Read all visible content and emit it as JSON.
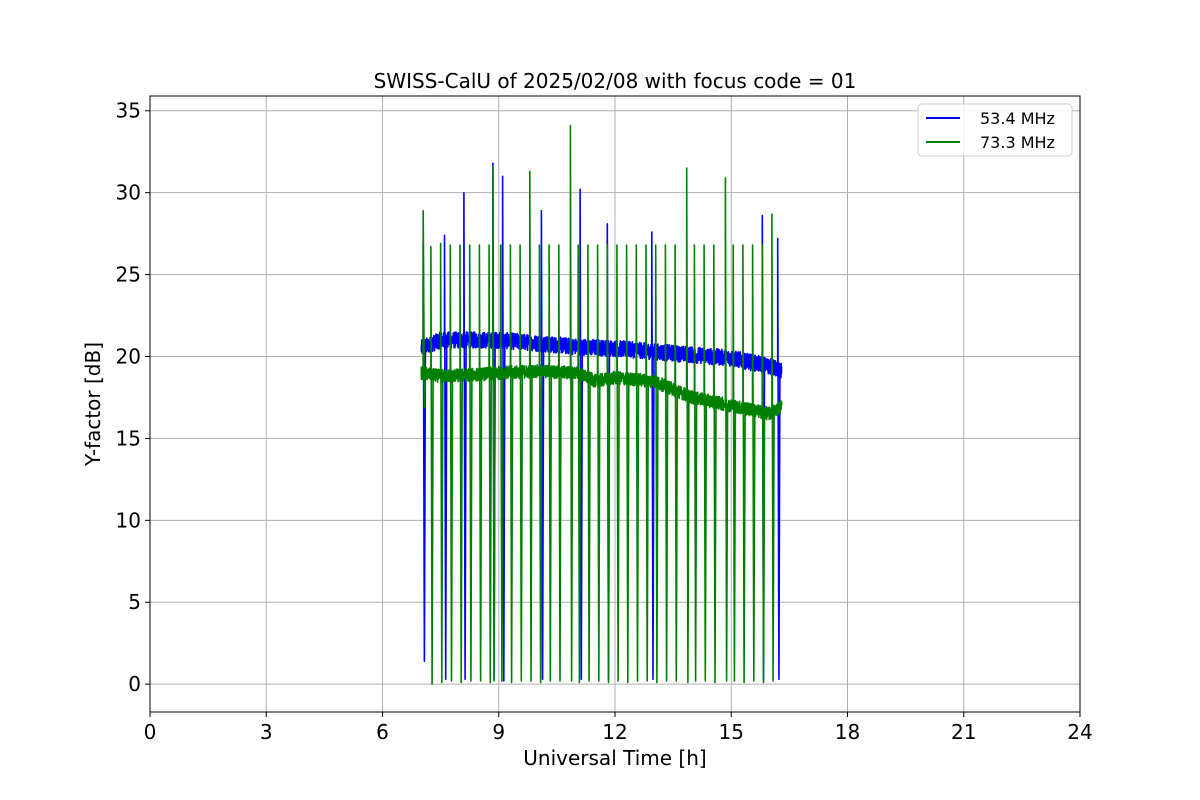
{
  "chart_data": {
    "type": "line",
    "title": "SWISS-CalU of 2025/02/08 with focus code = 01",
    "xlabel": "Universal Time [h]",
    "ylabel": "Y-factor [dB]",
    "xlim": [
      0,
      24
    ],
    "ylim": [
      -1.7,
      35.9
    ],
    "x_ticks": [
      0,
      3,
      6,
      9,
      12,
      15,
      18,
      21,
      24
    ],
    "y_ticks": [
      0,
      5,
      10,
      15,
      20,
      25,
      30,
      35
    ],
    "grid": true,
    "legend_position": "top-right",
    "series": [
      {
        "name": "53.4 MHz",
        "color": "#0000ff",
        "baseline": [
          [
            7.0,
            20.5
          ],
          [
            7.5,
            21.0
          ],
          [
            8.5,
            21.0
          ],
          [
            9.0,
            21.0
          ],
          [
            10.0,
            20.8
          ],
          [
            11.0,
            20.6
          ],
          [
            12.0,
            20.5
          ],
          [
            13.0,
            20.3
          ],
          [
            14.0,
            20.1
          ],
          [
            15.0,
            19.9
          ],
          [
            16.0,
            19.4
          ],
          [
            16.3,
            19.1
          ]
        ],
        "spikes": [
          {
            "x": 7.05,
            "peak": 27.0,
            "low": 1.4
          },
          {
            "x": 7.6,
            "peak": 27.4,
            "low": 0.3
          },
          {
            "x": 8.1,
            "peak": 30.0,
            "low": 0.3
          },
          {
            "x": 8.85,
            "peak": 31.8,
            "low": 0.3
          },
          {
            "x": 9.1,
            "peak": 31.0,
            "low": 0.2
          },
          {
            "x": 10.1,
            "peak": 28.9,
            "low": 0.3
          },
          {
            "x": 11.1,
            "peak": 30.2,
            "low": 0.3
          },
          {
            "x": 11.8,
            "peak": 28.1,
            "low": 0.3
          },
          {
            "x": 12.95,
            "peak": 27.6,
            "low": 0.3
          },
          {
            "x": 15.8,
            "peak": 28.6,
            "low": 0.3
          },
          {
            "x": 16.2,
            "peak": 27.2,
            "low": 0.3
          }
        ]
      },
      {
        "name": "73.3 MHz",
        "color": "#008000",
        "baseline": [
          [
            7.0,
            19.0
          ],
          [
            7.5,
            18.8
          ],
          [
            8.5,
            18.9
          ],
          [
            9.0,
            19.0
          ],
          [
            10.0,
            19.1
          ],
          [
            11.0,
            19.0
          ],
          [
            11.5,
            18.5
          ],
          [
            12.0,
            18.7
          ],
          [
            13.0,
            18.5
          ],
          [
            14.0,
            17.5
          ],
          [
            15.0,
            17.0
          ],
          [
            16.0,
            16.5
          ],
          [
            16.3,
            17.0
          ]
        ],
        "spikes": [
          {
            "x": 7.05,
            "peak": 28.9,
            "low": 16.9
          },
          {
            "x": 7.25,
            "peak": 26.7,
            "low": 0.0
          },
          {
            "x": 7.5,
            "peak": 26.9,
            "low": 0.1
          },
          {
            "x": 7.75,
            "peak": 26.8,
            "low": 0.2
          },
          {
            "x": 8.0,
            "peak": 26.8,
            "low": 0.1
          },
          {
            "x": 8.25,
            "peak": 26.8,
            "low": 0.2
          },
          {
            "x": 8.5,
            "peak": 26.8,
            "low": 0.2
          },
          {
            "x": 8.75,
            "peak": 26.8,
            "low": 0.1
          },
          {
            "x": 8.85,
            "peak": 31.6,
            "low": 0.2
          },
          {
            "x": 9.05,
            "peak": 26.8,
            "low": 0.2
          },
          {
            "x": 9.3,
            "peak": 26.8,
            "low": 0.1
          },
          {
            "x": 9.55,
            "peak": 26.8,
            "low": 0.2
          },
          {
            "x": 9.8,
            "peak": 31.3,
            "low": 0.2
          },
          {
            "x": 10.05,
            "peak": 26.8,
            "low": 0.1
          },
          {
            "x": 10.3,
            "peak": 26.8,
            "low": 0.2
          },
          {
            "x": 10.55,
            "peak": 26.8,
            "low": 0.2
          },
          {
            "x": 10.85,
            "peak": 34.1,
            "low": 0.2
          },
          {
            "x": 11.05,
            "peak": 26.8,
            "low": 0.1
          },
          {
            "x": 11.3,
            "peak": 26.8,
            "low": 0.2
          },
          {
            "x": 11.55,
            "peak": 26.8,
            "low": 0.2
          },
          {
            "x": 11.8,
            "peak": 26.8,
            "low": 0.1
          },
          {
            "x": 12.05,
            "peak": 26.8,
            "low": 0.2
          },
          {
            "x": 12.3,
            "peak": 26.8,
            "low": 0.1
          },
          {
            "x": 12.55,
            "peak": 26.8,
            "low": 0.2
          },
          {
            "x": 12.8,
            "peak": 26.8,
            "low": 0.2
          },
          {
            "x": 13.05,
            "peak": 26.8,
            "low": 0.1
          },
          {
            "x": 13.3,
            "peak": 26.8,
            "low": 0.2
          },
          {
            "x": 13.55,
            "peak": 26.8,
            "low": 0.2
          },
          {
            "x": 13.85,
            "peak": 31.5,
            "low": 0.1
          },
          {
            "x": 14.05,
            "peak": 26.8,
            "low": 0.2
          },
          {
            "x": 14.3,
            "peak": 26.8,
            "low": 0.2
          },
          {
            "x": 14.55,
            "peak": 26.8,
            "low": 0.1
          },
          {
            "x": 14.85,
            "peak": 30.9,
            "low": 0.2
          },
          {
            "x": 15.05,
            "peak": 26.8,
            "low": 0.2
          },
          {
            "x": 15.3,
            "peak": 26.8,
            "low": 0.1
          },
          {
            "x": 15.55,
            "peak": 26.8,
            "low": 0.2
          },
          {
            "x": 15.8,
            "peak": 26.8,
            "low": 0.1
          },
          {
            "x": 16.05,
            "peak": 28.7,
            "low": 0.2
          }
        ]
      }
    ]
  }
}
